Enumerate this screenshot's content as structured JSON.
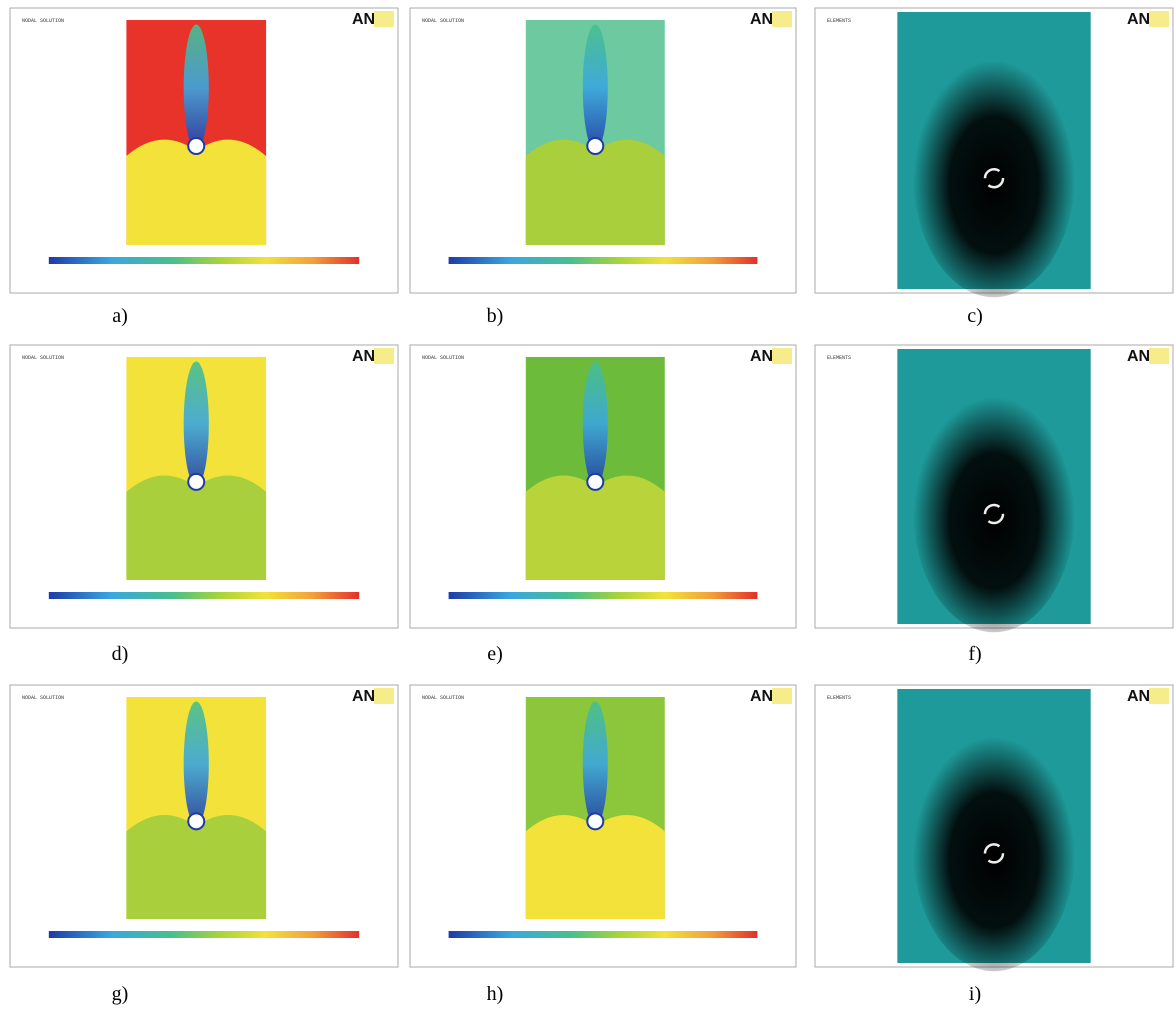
{
  "logo": "AN",
  "panels": [
    {
      "label": "a)",
      "title": "NODAL SOLUTION",
      "kind": "contour",
      "colors": [
        "#e8332a",
        "#f2e23a"
      ]
    },
    {
      "label": "b)",
      "title": "NODAL SOLUTION",
      "kind": "contour",
      "colors": [
        "#6cc9a0",
        "#a9cf3c"
      ]
    },
    {
      "label": "c)",
      "title": "ELEMENTS",
      "kind": "mesh",
      "colors": [
        "#1e9a9a",
        "#000000"
      ]
    },
    {
      "label": "d)",
      "title": "NODAL SOLUTION",
      "kind": "contour",
      "colors": [
        "#f2e23a",
        "#a9cf3c"
      ]
    },
    {
      "label": "e)",
      "title": "NODAL SOLUTION",
      "kind": "contour",
      "colors": [
        "#6dbb3a",
        "#b8d43a"
      ]
    },
    {
      "label": "f)",
      "title": "ELEMENTS",
      "kind": "mesh",
      "colors": [
        "#1e9a9a",
        "#000000"
      ]
    },
    {
      "label": "g)",
      "title": "NODAL SOLUTION",
      "kind": "contour",
      "colors": [
        "#f2e23a",
        "#a9cf3c"
      ]
    },
    {
      "label": "h)",
      "title": "NODAL SOLUTION",
      "kind": "contour",
      "colors": [
        "#8cc63a",
        "#f2e23a"
      ]
    },
    {
      "label": "i)",
      "title": "ELEMENTS",
      "kind": "mesh",
      "colors": [
        "#1e9a9a",
        "#000000"
      ]
    }
  ]
}
